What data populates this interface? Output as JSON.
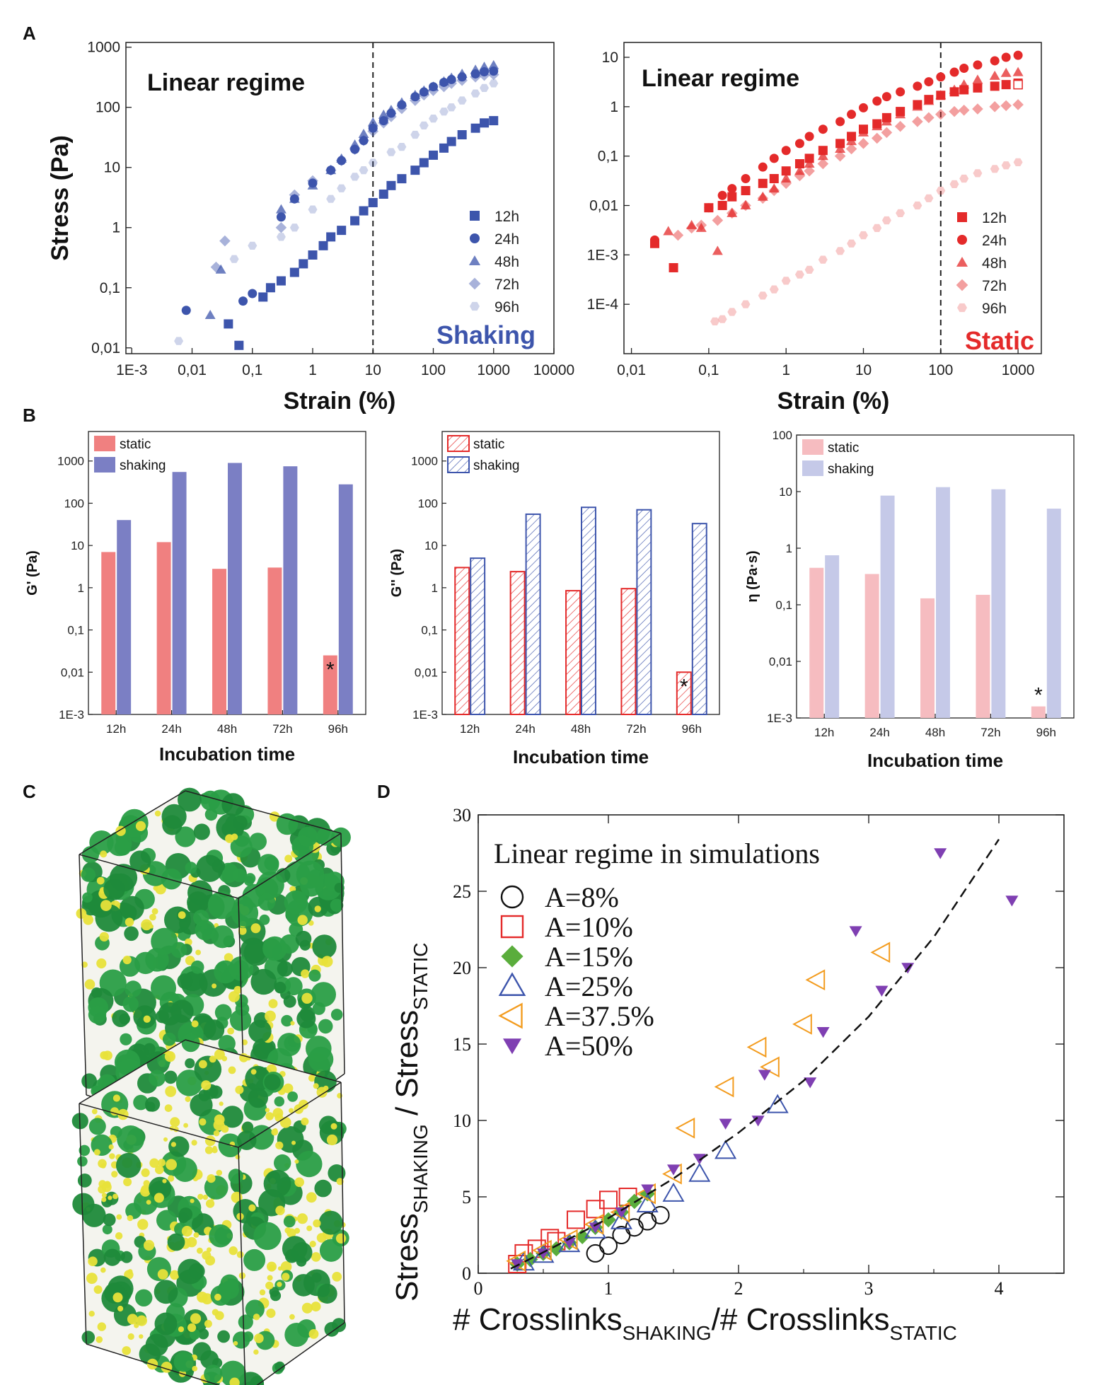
{
  "panels": {
    "A": "A",
    "B": "B",
    "C": "C",
    "D": "D"
  },
  "colors": {
    "blue": "#3d55ac",
    "red": "#e42a2a",
    "pink": "#f08080",
    "bar_blue": "#7b7fc4",
    "light_pink": "#f6bcc0",
    "light_lavender": "#c5c9e8",
    "green": "#1e8f3c",
    "yellow": "#e8e23a"
  },
  "chart_data": [
    {
      "id": "A-left",
      "type": "scatter",
      "xscale": "log",
      "yscale": "log",
      "xlabel": "Strain (%)",
      "ylabel": "Stress (Pa)",
      "xlim": [
        0.0008,
        10000
      ],
      "ylim": [
        0.008,
        1200
      ],
      "x_ticks": [
        "1E-3",
        "0,01",
        "0,1",
        "1",
        "10",
        "100",
        "1000",
        "10000"
      ],
      "y_ticks": [
        "0,01",
        "0,1",
        "1",
        "10",
        "100",
        "1000"
      ],
      "annotation": "Linear regime",
      "corner_label": "Shaking",
      "vline_x": 10,
      "series": [
        {
          "name": "12h",
          "marker": "square",
          "opacity": 1.0,
          "x": [
            0.06,
            0.04,
            0.15,
            0.2,
            0.3,
            0.5,
            0.7,
            1,
            1.5,
            2,
            3,
            5,
            7,
            10,
            15,
            20,
            30,
            50,
            70,
            100,
            150,
            200,
            300,
            500,
            700,
            1000
          ],
          "y": [
            0.011,
            0.025,
            0.07,
            0.1,
            0.13,
            0.18,
            0.25,
            0.35,
            0.5,
            0.7,
            0.9,
            1.3,
            1.9,
            2.6,
            3.6,
            5,
            6.5,
            9,
            12,
            16,
            21,
            27,
            35,
            45,
            55,
            60
          ]
        },
        {
          "name": "24h",
          "marker": "circle",
          "opacity": 1.0,
          "x": [
            0.008,
            0.07,
            0.1,
            0.3,
            0.5,
            1,
            2,
            3,
            5,
            7,
            10,
            15,
            20,
            30,
            50,
            70,
            100,
            150,
            200,
            300,
            500,
            700,
            1000
          ],
          "y": [
            0.042,
            0.06,
            0.08,
            1.5,
            3,
            5.5,
            9,
            13,
            20,
            28,
            45,
            60,
            80,
            110,
            150,
            180,
            220,
            260,
            290,
            320,
            360,
            390,
            400
          ]
        },
        {
          "name": "48h",
          "marker": "triangle",
          "opacity": 0.75,
          "x": [
            0.02,
            0.03,
            0.3,
            0.5,
            1,
            2,
            3,
            5,
            7,
            10,
            15,
            20,
            30,
            50,
            70,
            100,
            150,
            200,
            300,
            500,
            700,
            1000
          ],
          "y": [
            0.035,
            0.2,
            2,
            3,
            5,
            9,
            14,
            24,
            36,
            56,
            75,
            90,
            120,
            160,
            190,
            220,
            270,
            310,
            360,
            420,
            470,
            500
          ]
        },
        {
          "name": "72h",
          "marker": "diamond",
          "opacity": 0.45,
          "x": [
            0.025,
            0.035,
            0.3,
            0.5,
            1,
            2,
            3,
            5,
            7,
            10,
            15,
            20,
            30,
            50,
            70,
            100,
            150,
            200,
            300,
            500,
            700,
            1000
          ],
          "y": [
            0.22,
            0.6,
            1,
            3.5,
            6,
            9,
            13,
            20,
            28,
            40,
            55,
            70,
            95,
            130,
            160,
            190,
            220,
            250,
            280,
            320,
            340,
            350
          ]
        },
        {
          "name": "96h",
          "marker": "hexagon",
          "opacity": 0.25,
          "x": [
            0.006,
            0.05,
            0.1,
            0.3,
            0.5,
            1,
            2,
            3,
            5,
            7,
            10,
            20,
            30,
            50,
            70,
            100,
            150,
            200,
            300,
            500,
            700,
            1000
          ],
          "y": [
            0.013,
            0.3,
            0.5,
            0.7,
            1,
            2,
            3,
            4.5,
            7,
            9,
            12,
            18,
            22,
            35,
            50,
            65,
            85,
            100,
            130,
            170,
            210,
            250
          ]
        }
      ],
      "legend": [
        "12h",
        "24h",
        "48h",
        "72h",
        "96h"
      ]
    },
    {
      "id": "A-right",
      "type": "scatter",
      "xscale": "log",
      "yscale": "log",
      "xlabel": "Strain (%)",
      "ylabel": "",
      "xlim": [
        0.008,
        2000
      ],
      "ylim": [
        1e-05,
        20
      ],
      "x_ticks": [
        "0,01",
        "0,1",
        "1",
        "10",
        "100",
        "1000"
      ],
      "y_ticks": [
        "1E-4",
        "1E-3",
        "0,01",
        "0,1",
        "1",
        "10"
      ],
      "annotation": "Linear regime",
      "corner_label": "Static",
      "vline_x": 100,
      "series": [
        {
          "name": "12h",
          "marker": "square",
          "opacity": 1.0,
          "x": [
            0.02,
            0.035,
            0.1,
            0.15,
            0.2,
            0.3,
            0.5,
            0.7,
            1,
            1.5,
            2,
            3,
            5,
            7,
            10,
            15,
            20,
            30,
            50,
            70,
            100,
            150,
            200,
            300,
            500,
            700,
            1000
          ],
          "y": [
            0.0017,
            0.00055,
            0.009,
            0.01,
            0.015,
            0.02,
            0.028,
            0.035,
            0.05,
            0.07,
            0.09,
            0.13,
            0.18,
            0.25,
            0.35,
            0.45,
            0.6,
            0.8,
            1.1,
            1.4,
            1.7,
            2,
            2.2,
            2.4,
            2.6,
            2.8,
            3
          ]
        },
        {
          "name": "24h",
          "marker": "circle",
          "opacity": 1.0,
          "x": [
            0.02,
            0.1,
            0.15,
            0.2,
            0.3,
            0.5,
            0.7,
            1,
            1.5,
            2,
            3,
            5,
            7,
            10,
            15,
            20,
            30,
            50,
            70,
            100,
            150,
            200,
            300,
            500,
            700,
            1000
          ],
          "y": [
            0.002,
            0.009,
            0.016,
            0.022,
            0.035,
            0.06,
            0.09,
            0.13,
            0.18,
            0.25,
            0.35,
            0.5,
            0.7,
            0.95,
            1.3,
            1.6,
            2,
            2.6,
            3.2,
            4,
            5,
            6,
            7,
            8.5,
            10,
            11
          ]
        },
        {
          "name": "48h",
          "marker": "triangle",
          "opacity": 0.75,
          "x": [
            0.03,
            0.06,
            0.08,
            0.13,
            0.2,
            0.3,
            0.5,
            0.7,
            1,
            1.5,
            2,
            3,
            5,
            7,
            10,
            15,
            20,
            30,
            50,
            70,
            100,
            150,
            200,
            300,
            500,
            700,
            1000
          ],
          "y": [
            0.003,
            0.004,
            0.0035,
            0.0012,
            0.007,
            0.01,
            0.015,
            0.022,
            0.035,
            0.05,
            0.07,
            0.1,
            0.14,
            0.2,
            0.3,
            0.4,
            0.5,
            0.7,
            1,
            1.3,
            1.7,
            2.2,
            2.8,
            3.5,
            4.2,
            4.8,
            5
          ]
        },
        {
          "name": "72h",
          "marker": "diamond",
          "opacity": 0.45,
          "x": [
            0.04,
            0.06,
            0.08,
            0.13,
            0.2,
            0.3,
            0.5,
            0.7,
            1,
            1.5,
            2,
            3,
            5,
            7,
            10,
            15,
            20,
            30,
            50,
            70,
            100,
            150,
            200,
            300,
            500,
            700,
            1000
          ],
          "y": [
            0.0025,
            0.0035,
            0.004,
            0.005,
            0.007,
            0.01,
            0.014,
            0.02,
            0.028,
            0.04,
            0.05,
            0.07,
            0.1,
            0.14,
            0.18,
            0.23,
            0.3,
            0.4,
            0.5,
            0.6,
            0.7,
            0.8,
            0.85,
            0.9,
            1,
            1.05,
            1.1
          ]
        },
        {
          "name": "96h",
          "marker": "hexagon",
          "opacity": 0.25,
          "x": [
            0.12,
            0.15,
            0.2,
            0.3,
            0.5,
            0.7,
            1,
            1.5,
            2,
            3,
            5,
            7,
            10,
            15,
            20,
            30,
            50,
            70,
            100,
            150,
            200,
            300,
            500,
            700,
            1000
          ],
          "y": [
            4.5e-05,
            5e-05,
            7e-05,
            0.0001,
            0.00015,
            0.0002,
            0.0003,
            0.0004,
            0.0005,
            0.0008,
            0.0012,
            0.0017,
            0.0025,
            0.0035,
            0.005,
            0.007,
            0.01,
            0.014,
            0.02,
            0.027,
            0.035,
            0.045,
            0.055,
            0.065,
            0.075
          ]
        }
      ],
      "legend": [
        "12h",
        "24h",
        "48h",
        "72h",
        "96h"
      ]
    },
    {
      "id": "B-1",
      "type": "bar",
      "yscale": "log",
      "categories": [
        "12h",
        "24h",
        "48h",
        "72h",
        "96h"
      ],
      "xlabel": "Incubation time",
      "ylabel": "G' (Pa)",
      "ylim": [
        0.001,
        5000
      ],
      "y_ticks": [
        "1E-3",
        "0,01",
        "0,1",
        "1",
        "10",
        "100",
        "1000"
      ],
      "style": "solid",
      "series": [
        {
          "name": "static",
          "values": [
            7,
            12,
            2.8,
            3,
            0.025
          ]
        },
        {
          "name": "shaking",
          "values": [
            40,
            550,
            900,
            750,
            280
          ]
        }
      ],
      "star": "*"
    },
    {
      "id": "B-2",
      "type": "bar",
      "yscale": "log",
      "categories": [
        "12h",
        "24h",
        "48h",
        "72h",
        "96h"
      ],
      "xlabel": "Incubation time",
      "ylabel": "G'' (Pa)",
      "ylim": [
        0.001,
        5000
      ],
      "y_ticks": [
        "1E-3",
        "0,01",
        "0,1",
        "1",
        "10",
        "100",
        "1000"
      ],
      "style": "hatched",
      "series": [
        {
          "name": "static",
          "values": [
            3,
            2.4,
            0.85,
            0.95,
            0.01
          ]
        },
        {
          "name": "shaking",
          "values": [
            5,
            55,
            80,
            70,
            33
          ]
        }
      ],
      "star": "*"
    },
    {
      "id": "B-3",
      "type": "bar",
      "yscale": "log",
      "categories": [
        "12h",
        "24h",
        "48h",
        "72h",
        "96h"
      ],
      "xlabel": "Incubation time",
      "ylabel": "η (Pa·s)",
      "ylim": [
        0.001,
        100
      ],
      "y_ticks": [
        "1E-3",
        "0,01",
        "0,1",
        "1",
        "10",
        "100"
      ],
      "style": "light",
      "series": [
        {
          "name": "static",
          "values": [
            0.45,
            0.35,
            0.13,
            0.15,
            0.0016
          ]
        },
        {
          "name": "shaking",
          "values": [
            0.75,
            8.5,
            12,
            11,
            5
          ]
        }
      ],
      "star": "*"
    },
    {
      "id": "D",
      "type": "scatter",
      "xlabel_main": "# Crosslinks",
      "xlabel_sub1": "SHAKING",
      "xlabel_mid": "/# Crosslinks",
      "xlabel_sub2": "STATIC",
      "ylabel_main": "Stress",
      "ylabel_sub1": "SHAKING",
      "ylabel_mid": " / Stress",
      "ylabel_sub2": "STATIC",
      "xlim": [
        0,
        4.5
      ],
      "ylim": [
        0,
        30
      ],
      "x_ticks": [
        "0",
        "1",
        "2",
        "3",
        "4"
      ],
      "y_ticks": [
        "0",
        "5",
        "10",
        "15",
        "20",
        "25",
        "30"
      ],
      "legend_title": "Linear regime in simulations",
      "fit_line": {
        "x": [
          0.25,
          0.6,
          1,
          1.5,
          2,
          2.5,
          3,
          3.5,
          4
        ],
        "y": [
          0.3,
          1.8,
          3.6,
          6.2,
          9.2,
          12.6,
          16.8,
          22,
          28.4
        ]
      },
      "series": [
        {
          "name": "A=8%",
          "marker": "circle-open",
          "color": "#111111",
          "x": [
            0.9,
            1.0,
            1.1,
            1.2,
            1.3,
            1.4
          ],
          "y": [
            1.3,
            1.8,
            2.5,
            3.0,
            3.4,
            3.8
          ]
        },
        {
          "name": "A=10%",
          "marker": "square-open",
          "color": "#e42a2a",
          "x": [
            0.3,
            0.35,
            0.45,
            0.55,
            0.6,
            0.75,
            0.9,
            1.0,
            1.15
          ],
          "y": [
            0.6,
            1.3,
            1.6,
            2.3,
            2.1,
            3.5,
            4.2,
            4.8,
            5.0
          ]
        },
        {
          "name": "A=15%",
          "marker": "diamond-filled",
          "color": "#5aad3c",
          "x": [
            0.3,
            0.4,
            0.5,
            0.6,
            0.7,
            0.8,
            0.9,
            1.0,
            1.1,
            1.2,
            1.3
          ],
          "y": [
            0.6,
            0.9,
            1.3,
            1.6,
            2.0,
            2.4,
            3.0,
            3.5,
            4.0,
            4.7,
            5.2
          ]
        },
        {
          "name": "A=25%",
          "marker": "triangle-open",
          "color": "#3d55ac",
          "x": [
            0.35,
            0.5,
            0.7,
            0.9,
            1.1,
            1.3,
            1.5,
            1.7,
            1.9,
            2.3
          ],
          "y": [
            0.7,
            1.2,
            1.9,
            2.8,
            3.4,
            4.5,
            5.2,
            6.5,
            8.0,
            11.0
          ]
        },
        {
          "name": "A=37.5%",
          "marker": "triangle-left-open",
          "color": "#f39c1f",
          "x": [
            0.3,
            0.5,
            0.7,
            0.9,
            1.1,
            1.3,
            1.5,
            1.6,
            1.9,
            2.15,
            2.25,
            2.5,
            2.6,
            3.1
          ],
          "y": [
            0.8,
            1.5,
            2.2,
            3.2,
            4.0,
            5.2,
            6.5,
            9.5,
            12.2,
            14.8,
            13.5,
            16.3,
            19.2,
            21.0
          ]
        },
        {
          "name": "A=50%",
          "marker": "triangle-down-filled",
          "color": "#7f3fb2",
          "x": [
            0.3,
            0.5,
            0.7,
            0.9,
            1.1,
            1.3,
            1.5,
            1.7,
            1.9,
            2.15,
            2.2,
            2.55,
            2.65,
            2.9,
            3.1,
            3.3,
            3.55,
            4.1
          ],
          "y": [
            0.6,
            1.3,
            2.0,
            3.0,
            4.0,
            5.5,
            6.8,
            7.5,
            9.8,
            10.0,
            13.0,
            12.5,
            15.8,
            22.4,
            18.5,
            20.0,
            27.5,
            24.4
          ]
        }
      ]
    }
  ],
  "render_C": {
    "caption": ""
  }
}
